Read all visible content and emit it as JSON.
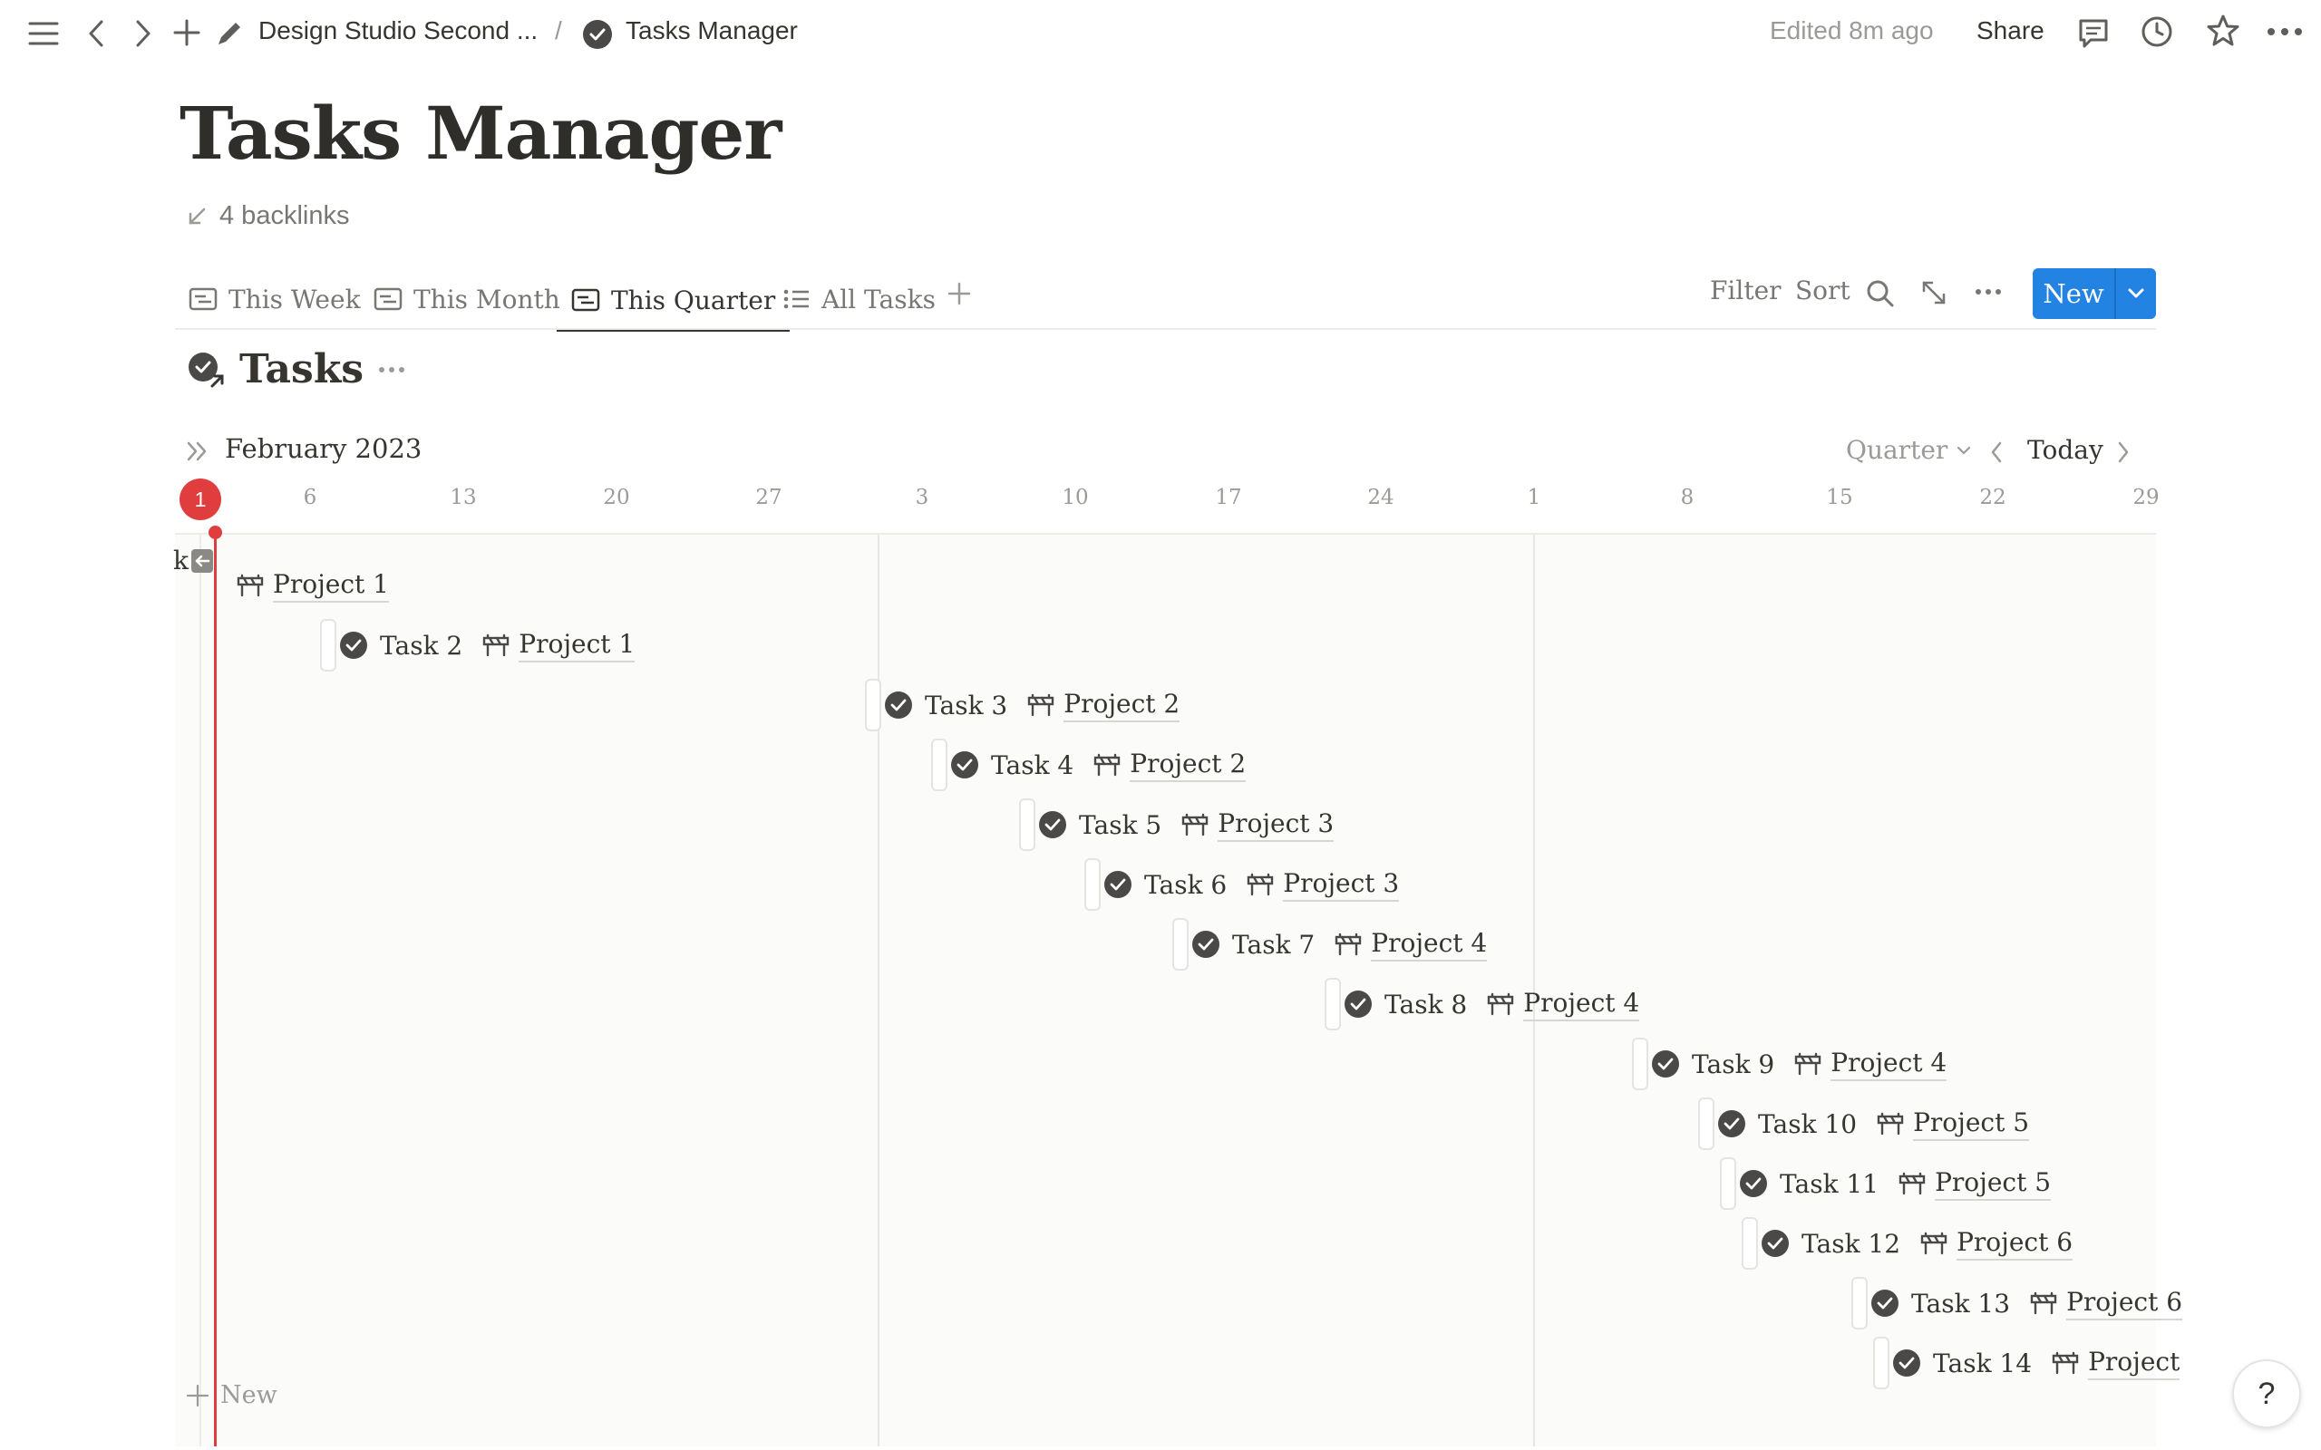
{
  "topbar": {
    "breadcrumb_parent": "Design Studio Second ...",
    "breadcrumb_separator": "/",
    "breadcrumb_current": "Tasks Manager",
    "edited": "Edited 8m ago",
    "share_label": "Share"
  },
  "page": {
    "title": "Tasks Manager",
    "backlinks": "4 backlinks"
  },
  "views": {
    "tabs": [
      {
        "label": "This Week"
      },
      {
        "label": "This Month"
      },
      {
        "label": "This Quarter"
      },
      {
        "label": "All Tasks"
      }
    ],
    "filter_label": "Filter",
    "sort_label": "Sort",
    "new_label": "New"
  },
  "database": {
    "title": "Tasks"
  },
  "timeline": {
    "month_label": "February 2023",
    "range_label": "Quarter",
    "today_label": "Today",
    "today_day": "1",
    "ticks": [
      "6",
      "13",
      "20",
      "27",
      "3",
      "10",
      "17",
      "24",
      "1",
      "8",
      "15",
      "22",
      "29"
    ],
    "add_new_label": "New",
    "first_row_prefix": "k",
    "rows": [
      {
        "task": "",
        "project": "Project 1"
      },
      {
        "task": "Task 2",
        "project": "Project 1"
      },
      {
        "task": "Task 3",
        "project": "Project 2"
      },
      {
        "task": "Task 4",
        "project": "Project 2"
      },
      {
        "task": "Task 5",
        "project": "Project 3"
      },
      {
        "task": "Task 6",
        "project": "Project 3"
      },
      {
        "task": "Task 7",
        "project": "Project 4"
      },
      {
        "task": "Task 8",
        "project": "Project 4"
      },
      {
        "task": "Task 9",
        "project": "Project 4"
      },
      {
        "task": "Task 10",
        "project": "Project 5"
      },
      {
        "task": "Task 11",
        "project": "Project 5"
      },
      {
        "task": "Task 12",
        "project": "Project 6"
      },
      {
        "task": "Task 13",
        "project": "Project 6"
      },
      {
        "task": "Task 14",
        "project": "Project"
      }
    ]
  },
  "help_label": "?"
}
